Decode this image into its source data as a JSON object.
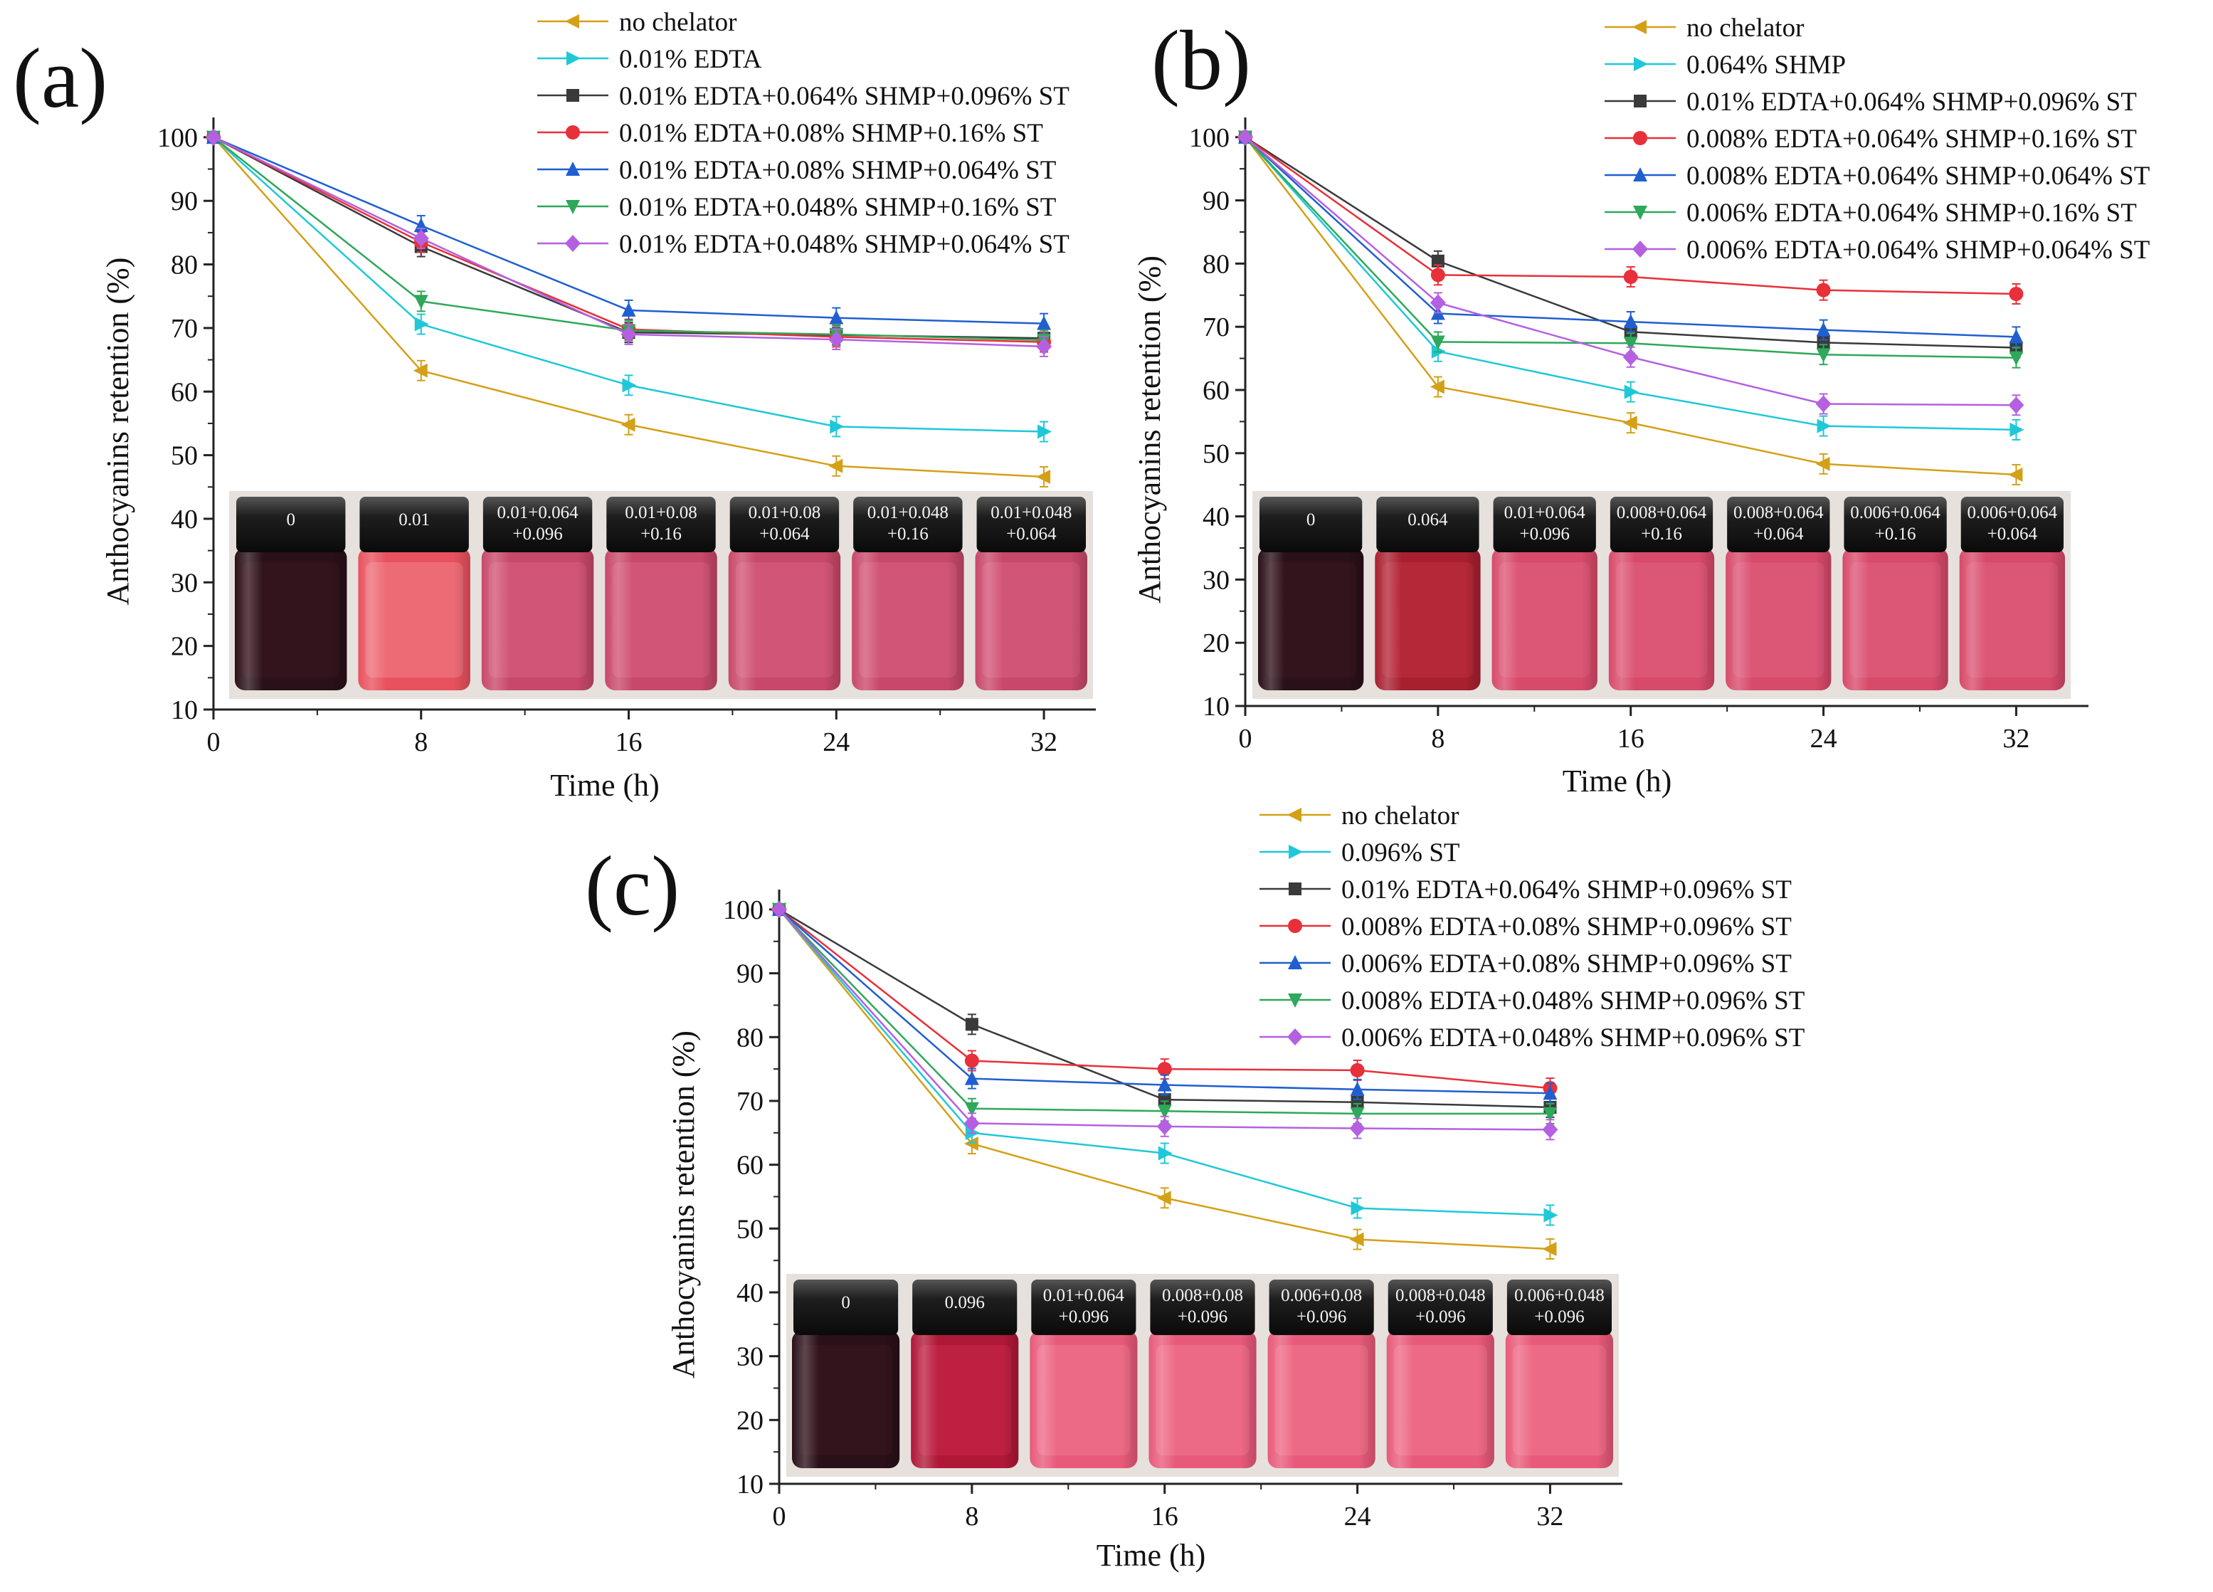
{
  "figure": {
    "colors": {
      "no_chelator": "#D4A017",
      "single": "#1FC8D8",
      "black": "#3A3A3A",
      "red": "#E8303A",
      "blue": "#1F5FD0",
      "green": "#2EA85A",
      "violet": "#B560E0"
    }
  },
  "chart_data": [
    {
      "type": "line",
      "panel_label": "(a)",
      "xlabel": "Time (h)",
      "ylabel": "Anthocyanins retention (%)",
      "x": [
        0,
        8,
        16,
        24,
        32
      ],
      "xticks": [
        "0",
        "8",
        "16",
        "24",
        "32"
      ],
      "yticks": [
        "10",
        "20",
        "30",
        "40",
        "50",
        "60",
        "70",
        "80",
        "90",
        "100"
      ],
      "xlim": [
        0,
        34
      ],
      "ylim": [
        10,
        102
      ],
      "legend_placement": "top",
      "series": [
        {
          "name": "no chelator",
          "marker": "tri-left",
          "color_key": "no_chelator",
          "values": [
            100,
            63.3,
            54.8,
            48.3,
            46.6
          ]
        },
        {
          "name": "0.01% EDTA",
          "marker": "tri-right",
          "color_key": "single",
          "values": [
            100,
            70.6,
            61.0,
            54.5,
            53.7
          ]
        },
        {
          "name": "0.01% EDTA+0.064% SHMP+0.096% ST",
          "marker": "square",
          "color_key": "black",
          "values": [
            100,
            82.8,
            69.3,
            68.9,
            68.4
          ]
        },
        {
          "name": "0.01% EDTA+0.08% SHMP+0.16% ST",
          "marker": "circle",
          "color_key": "red",
          "values": [
            100,
            83.5,
            69.8,
            68.6,
            67.8
          ]
        },
        {
          "name": "0.01% EDTA+0.08% SHMP+0.064% ST",
          "marker": "tri-up",
          "color_key": "blue",
          "values": [
            100,
            86.1,
            72.8,
            71.6,
            70.7
          ]
        },
        {
          "name": "0.01% EDTA+0.048% SHMP+0.16% ST",
          "marker": "tri-down",
          "color_key": "green",
          "values": [
            100,
            74.2,
            69.6,
            69.0,
            68.1
          ]
        },
        {
          "name": "0.01% EDTA+0.048% SHMP+0.064% ST",
          "marker": "diamond",
          "color_key": "violet",
          "values": [
            100,
            84.1,
            69.0,
            68.2,
            67.1
          ]
        }
      ],
      "vial_labels": [
        [
          "0"
        ],
        [
          "0.01"
        ],
        [
          "0.01+0.064",
          "+0.096"
        ],
        [
          "0.01+0.08",
          "+0.16"
        ],
        [
          "0.01+0.08",
          "+0.064"
        ],
        [
          "0.01+0.048",
          "+0.16"
        ],
        [
          "0.01+0.048",
          "+0.064"
        ]
      ]
    },
    {
      "type": "line",
      "panel_label": "(b)",
      "xlabel": "Time (h)",
      "ylabel": "Anthocyanins retention (%)",
      "x": [
        0,
        8,
        16,
        24,
        32
      ],
      "xticks": [
        "0",
        "8",
        "16",
        "24",
        "32"
      ],
      "yticks": [
        "10",
        "20",
        "30",
        "40",
        "50",
        "60",
        "70",
        "80",
        "90",
        "100"
      ],
      "xlim": [
        0,
        35
      ],
      "ylim": [
        10,
        102
      ],
      "legend_placement": "top",
      "series": [
        {
          "name": "no chelator",
          "marker": "tri-left",
          "color_key": "no_chelator",
          "values": [
            100,
            60.5,
            54.8,
            48.3,
            46.6
          ]
        },
        {
          "name": "0.064% SHMP",
          "marker": "tri-right",
          "color_key": "single",
          "values": [
            100,
            66.1,
            59.7,
            54.3,
            53.7
          ]
        },
        {
          "name": "0.01% EDTA+0.064% SHMP+0.096% ST",
          "marker": "square",
          "color_key": "black",
          "values": [
            100,
            80.4,
            69.2,
            67.5,
            66.7
          ]
        },
        {
          "name": "0.008% EDTA+0.064% SHMP+0.16% ST",
          "marker": "circle",
          "color_key": "red",
          "values": [
            100,
            78.2,
            77.9,
            75.8,
            75.2
          ]
        },
        {
          "name": "0.008% EDTA+0.064% SHMP+0.064% ST",
          "marker": "tri-up",
          "color_key": "blue",
          "values": [
            100,
            72.1,
            70.8,
            69.5,
            68.4
          ]
        },
        {
          "name": "0.006% EDTA+0.064% SHMP+0.16% ST",
          "marker": "tri-down",
          "color_key": "green",
          "values": [
            100,
            67.6,
            67.4,
            65.6,
            65.1
          ]
        },
        {
          "name": "0.006% EDTA+0.064% SHMP+0.064% ST",
          "marker": "diamond",
          "color_key": "violet",
          "values": [
            100,
            73.8,
            65.2,
            57.8,
            57.6
          ]
        }
      ],
      "vial_labels": [
        [
          "0"
        ],
        [
          "0.064"
        ],
        [
          "0.01+0.064",
          "+0.096"
        ],
        [
          "0.008+0.064",
          "+0.16"
        ],
        [
          "0.008+0.064",
          "+0.064"
        ],
        [
          "0.006+0.064",
          "+0.16"
        ],
        [
          "0.006+0.064",
          "+0.064"
        ]
      ]
    },
    {
      "type": "line",
      "panel_label": "(c)",
      "xlabel": "Time (h)",
      "ylabel": "Anthocyanins retention (%)",
      "x": [
        0,
        8,
        16,
        24,
        32
      ],
      "xticks": [
        "0",
        "8",
        "16",
        "24",
        "32"
      ],
      "yticks": [
        "10",
        "20",
        "30",
        "40",
        "50",
        "60",
        "70",
        "80",
        "90",
        "100"
      ],
      "xlim": [
        0,
        35
      ],
      "ylim": [
        10,
        102
      ],
      "legend_placement": "top-right",
      "series": [
        {
          "name": "no chelator",
          "marker": "tri-left",
          "color_key": "no_chelator",
          "values": [
            100,
            63.3,
            54.8,
            48.3,
            46.8
          ]
        },
        {
          "name": "0.096% ST",
          "marker": "tri-right",
          "color_key": "single",
          "values": [
            100,
            65.0,
            61.8,
            53.2,
            52.1
          ]
        },
        {
          "name": "0.01% EDTA+0.064% SHMP+0.096% ST",
          "marker": "square",
          "color_key": "black",
          "values": [
            100,
            82.0,
            70.2,
            69.8,
            69.0
          ]
        },
        {
          "name": "0.008% EDTA+0.08% SHMP+0.096% ST",
          "marker": "circle",
          "color_key": "red",
          "values": [
            100,
            76.3,
            75.0,
            74.8,
            72.0
          ]
        },
        {
          "name": "0.006% EDTA+0.08% SHMP+0.096% ST",
          "marker": "tri-up",
          "color_key": "blue",
          "values": [
            100,
            73.5,
            72.5,
            71.8,
            71.2
          ]
        },
        {
          "name": "0.008% EDTA+0.048% SHMP+0.096% ST",
          "marker": "tri-down",
          "color_key": "green",
          "values": [
            100,
            68.8,
            68.4,
            68.0,
            68.0
          ]
        },
        {
          "name": "0.006% EDTA+0.048% SHMP+0.096% ST",
          "marker": "diamond",
          "color_key": "violet",
          "values": [
            100,
            66.5,
            66.0,
            65.7,
            65.5
          ]
        }
      ],
      "vial_labels": [
        [
          "0"
        ],
        [
          "0.096"
        ],
        [
          "0.01+0.064",
          "+0.096"
        ],
        [
          "0.008+0.08",
          "+0.096"
        ],
        [
          "0.006+0.08",
          "+0.096"
        ],
        [
          "0.008+0.048",
          "+0.096"
        ],
        [
          "0.006+0.048",
          "+0.096"
        ]
      ]
    }
  ]
}
